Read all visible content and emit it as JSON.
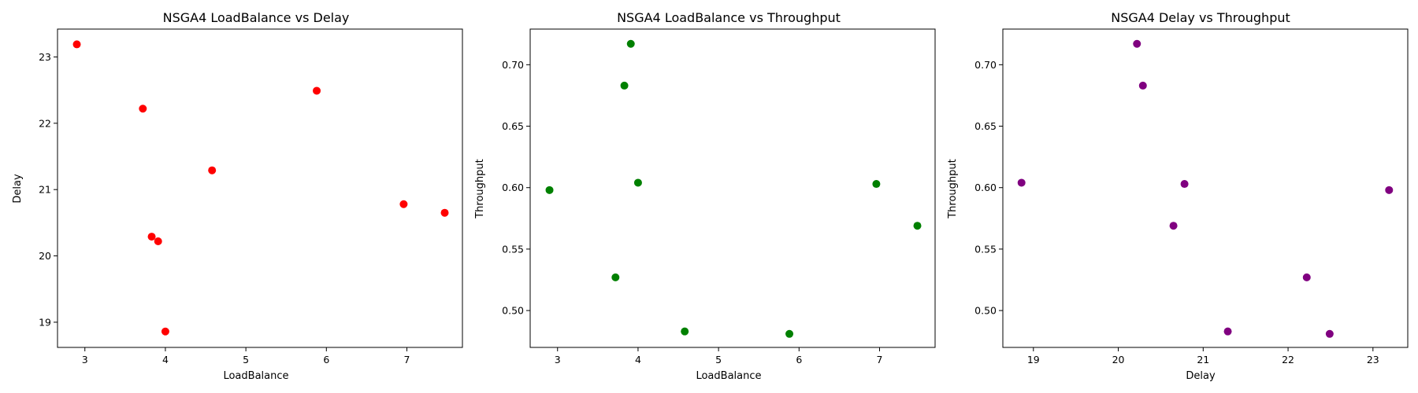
{
  "chart_data": [
    {
      "type": "scatter",
      "title": "NSGA4 LoadBalance vs Delay",
      "xlabel": "LoadBalance",
      "ylabel": "Delay",
      "xlim": [
        2.66,
        7.69
      ],
      "ylim": [
        18.62,
        23.42
      ],
      "xticks": [
        3,
        4,
        5,
        6,
        7
      ],
      "yticks": [
        19,
        20,
        21,
        22,
        23
      ],
      "color": "#ff0000",
      "x": [
        2.9,
        3.72,
        3.83,
        3.91,
        4.0,
        4.58,
        5.88,
        6.96,
        7.47
      ],
      "y": [
        23.19,
        22.22,
        20.29,
        20.22,
        18.86,
        21.29,
        22.49,
        20.78,
        20.65
      ]
    },
    {
      "type": "scatter",
      "title": "NSGA4 LoadBalance vs Throughput",
      "xlabel": "LoadBalance",
      "ylabel": "Throughput",
      "xlim": [
        2.66,
        7.69
      ],
      "ylim": [
        0.47,
        0.729
      ],
      "xticks": [
        3,
        4,
        5,
        6,
        7
      ],
      "yticks": [
        0.5,
        0.55,
        0.6,
        0.65,
        0.7
      ],
      "ytick_format": 2,
      "color": "#008000",
      "x": [
        2.9,
        3.72,
        3.83,
        3.91,
        4.0,
        4.58,
        5.88,
        6.96,
        7.47
      ],
      "y": [
        0.598,
        0.527,
        0.683,
        0.717,
        0.604,
        0.483,
        0.481,
        0.603,
        0.569
      ]
    },
    {
      "type": "scatter",
      "title": "NSGA4 Delay vs Throughput",
      "xlabel": "Delay",
      "ylabel": "Throughput",
      "xlim": [
        18.64,
        23.41
      ],
      "ylim": [
        0.47,
        0.729
      ],
      "xticks": [
        19,
        20,
        21,
        22,
        23
      ],
      "yticks": [
        0.5,
        0.55,
        0.6,
        0.65,
        0.7
      ],
      "ytick_format": 2,
      "color": "#800080",
      "x": [
        18.86,
        20.22,
        20.29,
        20.65,
        20.78,
        21.29,
        22.22,
        22.49,
        23.19
      ],
      "y": [
        0.604,
        0.717,
        0.683,
        0.569,
        0.603,
        0.483,
        0.527,
        0.481,
        0.598
      ]
    }
  ]
}
